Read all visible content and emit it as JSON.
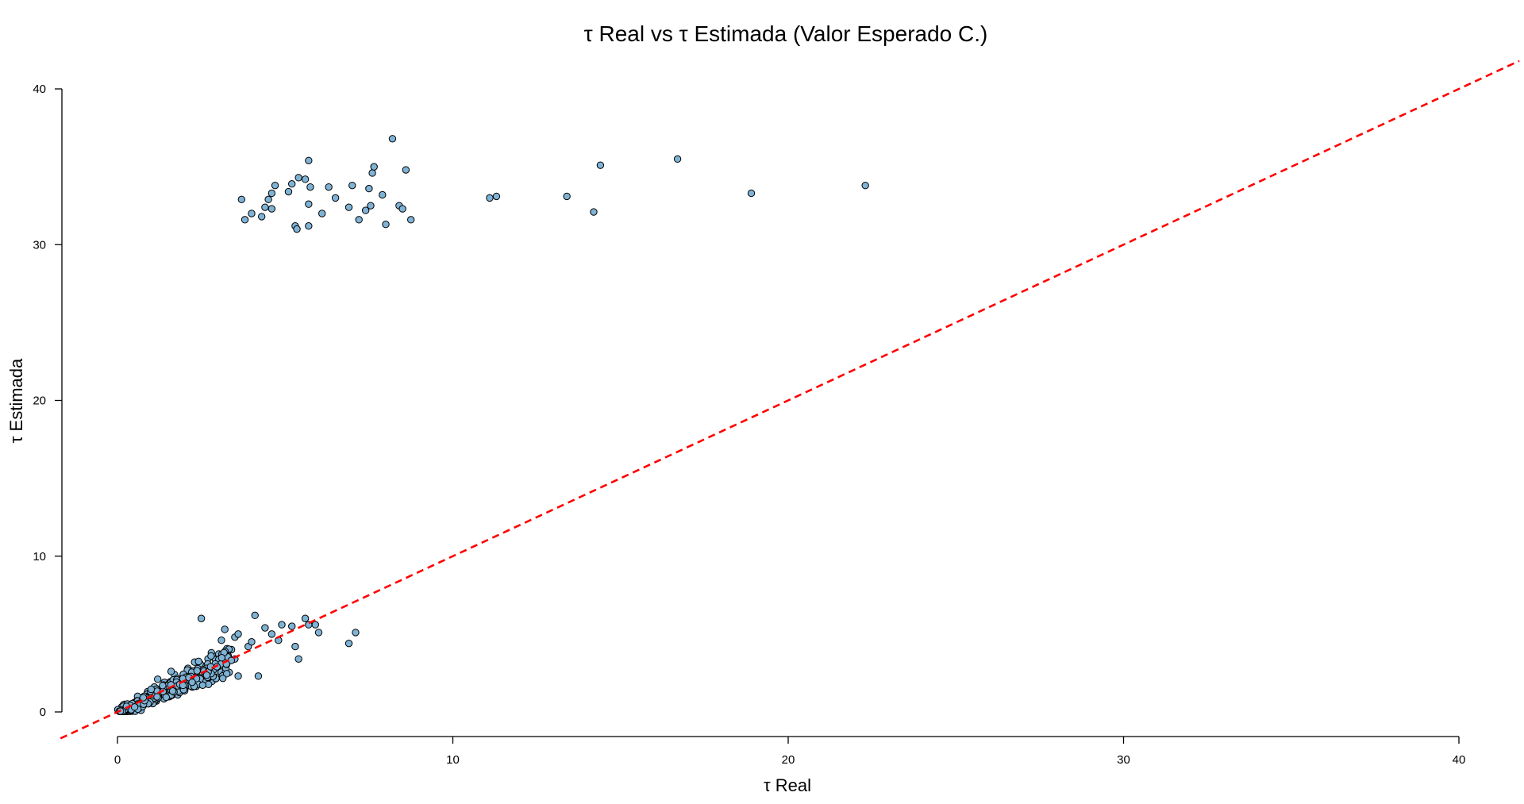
{
  "chart_data": {
    "type": "scatter",
    "title": "τ Real vs τ Estimada (Valor Esperado C.)",
    "xlabel": "τ Real",
    "ylabel": "τ Estimada",
    "xlim": [
      0,
      40
    ],
    "ylim": [
      0,
      40
    ],
    "x_ticks": [
      0,
      10,
      20,
      30,
      40
    ],
    "y_ticks": [
      0,
      10,
      20,
      30,
      40
    ],
    "grid": false,
    "point_color": "#7fb3d5",
    "point_edge_color": "#000000",
    "reference_line": {
      "style": "dashed",
      "color": "#ff0000",
      "slope": 1,
      "intercept": 0
    },
    "series": [
      {
        "points": [
          [
            3.7,
            32.9
          ],
          [
            3.8,
            31.6
          ],
          [
            4.0,
            32.0
          ],
          [
            4.3,
            31.8
          ],
          [
            4.4,
            32.4
          ],
          [
            4.5,
            32.9
          ],
          [
            4.6,
            33.3
          ],
          [
            4.6,
            32.3
          ],
          [
            4.7,
            33.8
          ],
          [
            5.1,
            33.4
          ],
          [
            5.2,
            33.9
          ],
          [
            5.3,
            31.2
          ],
          [
            5.35,
            31.0
          ],
          [
            5.4,
            34.3
          ],
          [
            5.6,
            34.2
          ],
          [
            5.7,
            35.4
          ],
          [
            5.75,
            33.7
          ],
          [
            5.7,
            32.6
          ],
          [
            5.7,
            31.2
          ],
          [
            6.1,
            32.0
          ],
          [
            6.3,
            33.7
          ],
          [
            6.5,
            33.0
          ],
          [
            6.9,
            32.4
          ],
          [
            7.0,
            33.8
          ],
          [
            7.2,
            31.6
          ],
          [
            7.4,
            32.2
          ],
          [
            7.5,
            33.6
          ],
          [
            7.55,
            32.5
          ],
          [
            7.6,
            34.6
          ],
          [
            7.65,
            35.0
          ],
          [
            7.9,
            33.2
          ],
          [
            8.0,
            31.3
          ],
          [
            8.2,
            36.8
          ],
          [
            8.4,
            32.5
          ],
          [
            8.5,
            32.3
          ],
          [
            8.6,
            34.8
          ],
          [
            8.75,
            31.6
          ],
          [
            11.1,
            33.0
          ],
          [
            11.3,
            33.1
          ],
          [
            13.4,
            33.1
          ],
          [
            14.2,
            32.1
          ],
          [
            14.4,
            35.1
          ],
          [
            16.7,
            35.5
          ],
          [
            18.9,
            33.3
          ],
          [
            22.3,
            33.8
          ],
          [
            2.5,
            6.0
          ],
          [
            3.2,
            5.3
          ],
          [
            3.5,
            4.8
          ],
          [
            3.6,
            5.0
          ],
          [
            4.1,
            6.2
          ],
          [
            4.4,
            5.4
          ],
          [
            4.6,
            5.0
          ],
          [
            4.9,
            5.6
          ],
          [
            5.2,
            5.5
          ],
          [
            5.3,
            4.2
          ],
          [
            5.4,
            3.4
          ],
          [
            5.6,
            6.0
          ],
          [
            5.7,
            5.6
          ],
          [
            5.9,
            5.6
          ],
          [
            6.0,
            5.1
          ],
          [
            6.9,
            4.4
          ],
          [
            7.1,
            5.1
          ],
          [
            4.2,
            2.3
          ],
          [
            3.6,
            2.3
          ],
          [
            3.1,
            4.6
          ],
          [
            2.8,
            3.8
          ],
          [
            3.4,
            4.0
          ],
          [
            3.9,
            4.2
          ],
          [
            2.3,
            3.2
          ],
          [
            2.6,
            2.5
          ],
          [
            3.0,
            3.0
          ],
          [
            1.9,
            2.0
          ],
          [
            2.1,
            2.8
          ],
          [
            2.4,
            2.1
          ],
          [
            1.7,
            2.4
          ],
          [
            1.4,
            1.9
          ],
          [
            2.7,
            3.4
          ],
          [
            3.3,
            3.6
          ],
          [
            4.0,
            4.5
          ],
          [
            1.8,
            1.1
          ],
          [
            2.0,
            1.5
          ],
          [
            1.1,
            1.6
          ],
          [
            1.3,
            1.0
          ],
          [
            0.9,
            1.3
          ],
          [
            0.7,
            0.8
          ],
          [
            1.2,
            2.1
          ],
          [
            1.5,
            1.4
          ],
          [
            1.6,
            2.6
          ],
          [
            2.2,
            2.4
          ],
          [
            2.5,
            2.9
          ],
          [
            0.5,
            0.6
          ],
          [
            0.4,
            0.3
          ],
          [
            0.3,
            0.2
          ],
          [
            0.8,
            0.5
          ],
          [
            1.0,
            0.9
          ],
          [
            0.6,
            1.0
          ],
          [
            1.6,
            1.2
          ],
          [
            2.9,
            2.6
          ],
          [
            3.5,
            3.4
          ],
          [
            4.8,
            4.6
          ]
        ]
      }
    ]
  }
}
